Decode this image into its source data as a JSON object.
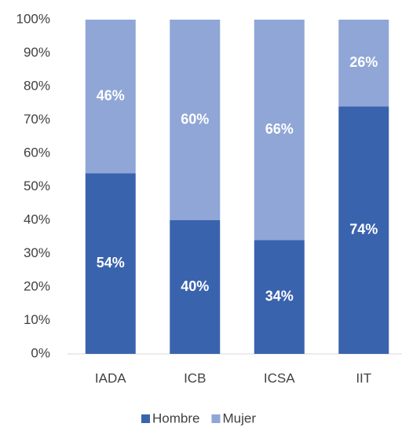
{
  "chart_data": {
    "type": "stacked_bar",
    "categories": [
      "IADA",
      "ICB",
      "ICSA",
      "IIT"
    ],
    "series": [
      {
        "name": "Hombre",
        "color": "#3a63ae",
        "values": [
          54,
          40,
          34,
          74
        ],
        "value_labels": [
          "54%",
          "40%",
          "34%",
          "74%"
        ]
      },
      {
        "name": "Mujer",
        "color": "#8fa6d6",
        "values": [
          46,
          60,
          66,
          26
        ],
        "value_labels": [
          "46%",
          "60%",
          "66%",
          "26%"
        ]
      }
    ],
    "ylim": [
      0,
      100
    ],
    "yticks": [
      {
        "value": 0,
        "label": "0%"
      },
      {
        "value": 10,
        "label": "10%"
      },
      {
        "value": 20,
        "label": "20%"
      },
      {
        "value": 30,
        "label": "30%"
      },
      {
        "value": 40,
        "label": "40%"
      },
      {
        "value": 50,
        "label": "50%"
      },
      {
        "value": 60,
        "label": "60%"
      },
      {
        "value": 70,
        "label": "70%"
      },
      {
        "value": 80,
        "label": "80%"
      },
      {
        "value": 90,
        "label": "90%"
      },
      {
        "value": 100,
        "label": "100%"
      }
    ],
    "grid": false,
    "legend": "bottom"
  }
}
